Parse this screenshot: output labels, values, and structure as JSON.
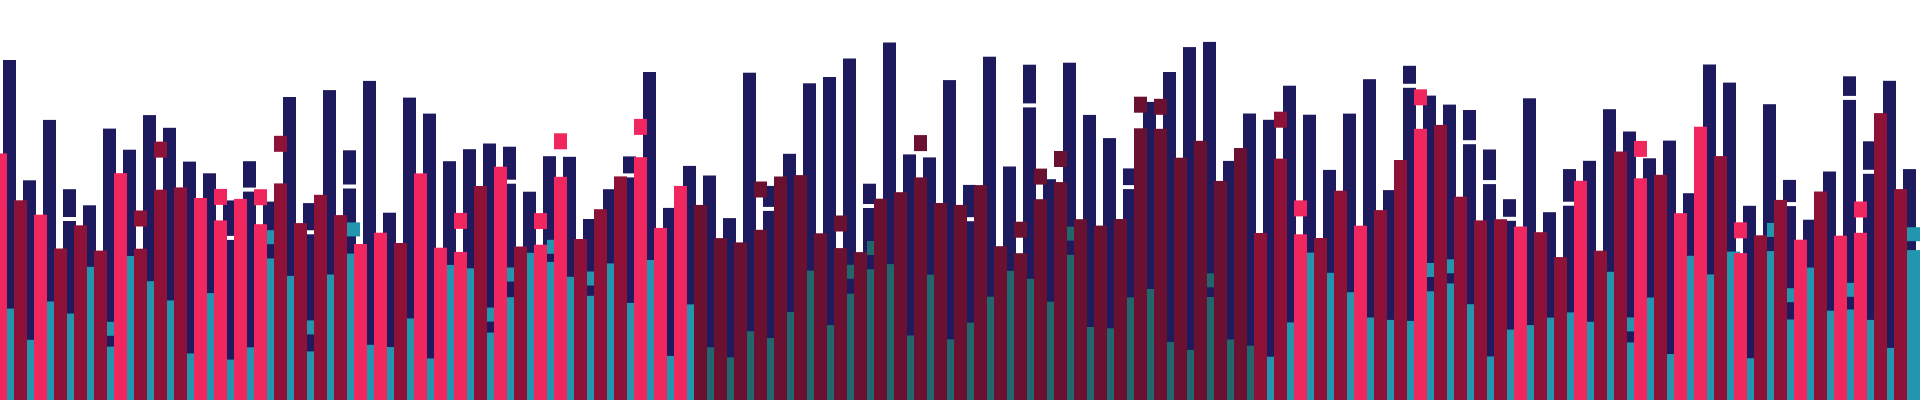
{
  "artwork": {
    "palette": {
      "background": "#ffffff",
      "navy": "#1e1a5e",
      "pink": "#f0265f",
      "maroon": "#8e1238",
      "dark_maroon": "#6a1030",
      "teal": "#2296ae",
      "dark_teal": "#21686e",
      "gap": "#ffffff"
    }
  }
}
